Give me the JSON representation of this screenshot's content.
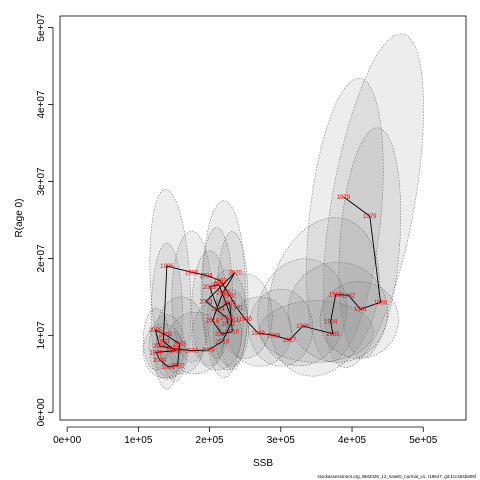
{
  "chart_data": {
    "type": "scatter",
    "title": "",
    "xlabel": "SSB",
    "ylabel": "R(age 0)",
    "xlim": [
      -10000,
      560000
    ],
    "ylim": [
      -1000000,
      51500000
    ],
    "x_ticks": [
      0,
      100000,
      200000,
      300000,
      400000,
      500000
    ],
    "x_tick_labels": [
      "0e+00",
      "1e+05",
      "2e+05",
      "3e+05",
      "4e+05",
      "5e+05"
    ],
    "y_ticks": [
      0,
      10000000,
      20000000,
      30000000,
      40000000,
      50000000
    ],
    "y_tick_labels": [
      "0e+00",
      "1e+07",
      "2e+07",
      "3e+07",
      "4e+07",
      "5e+07"
    ],
    "footnote": "stockassessment.org, BM2026_12_newID_normal_v1, r19647, git:1cc464b806f",
    "series": [
      {
        "type": "line-with-year-labels",
        "points": [
          {
            "label": "1978",
            "x": 388000,
            "y": 28000000
          },
          {
            "label": "1979",
            "x": 425000,
            "y": 25500000
          },
          {
            "label": "1980",
            "x": 440000,
            "y": 14300000
          },
          {
            "label": "1981",
            "x": 412000,
            "y": 13400000
          },
          {
            "label": "1982",
            "x": 395000,
            "y": 15200000
          },
          {
            "label": "1983",
            "x": 377000,
            "y": 15300000
          },
          {
            "label": "1984",
            "x": 370000,
            "y": 11800000
          },
          {
            "label": "1985",
            "x": 373000,
            "y": 10200000
          },
          {
            "label": "1986",
            "x": 331000,
            "y": 11200000
          },
          {
            "label": "1987",
            "x": 312000,
            "y": 9400000
          },
          {
            "label": "1988",
            "x": 290000,
            "y": 10000000
          },
          {
            "label": "1989",
            "x": 268000,
            "y": 10300000
          },
          {
            "label": "1990",
            "x": 250000,
            "y": 12100000
          },
          {
            "label": "1991",
            "x": 238000,
            "y": 13600000
          },
          {
            "label": "1992",
            "x": 228000,
            "y": 15200000
          },
          {
            "label": "1993",
            "x": 215000,
            "y": 17100000
          },
          {
            "label": "1994",
            "x": 195000,
            "y": 17800000
          },
          {
            "label": "1995",
            "x": 175000,
            "y": 18200000
          },
          {
            "label": "1996",
            "x": 140000,
            "y": 19000000
          },
          {
            "label": "1997",
            "x": 135000,
            "y": 9200000
          },
          {
            "label": "1998",
            "x": 152000,
            "y": 8000000
          },
          {
            "label": "1999",
            "x": 125000,
            "y": 7800000
          },
          {
            "label": "2000",
            "x": 130000,
            "y": 6800000
          },
          {
            "label": "2001",
            "x": 142000,
            "y": 5900000
          },
          {
            "label": "2002",
            "x": 155000,
            "y": 6100000
          },
          {
            "label": "2003",
            "x": 158000,
            "y": 8900000
          },
          {
            "label": "2004",
            "x": 138000,
            "y": 10100000
          },
          {
            "label": "2005",
            "x": 124000,
            "y": 10700000
          },
          {
            "label": "2006",
            "x": 130000,
            "y": 8600000
          },
          {
            "label": "2007",
            "x": 148000,
            "y": 8300000
          },
          {
            "label": "2008",
            "x": 175000,
            "y": 8000000
          },
          {
            "label": "2009",
            "x": 198000,
            "y": 8100000
          },
          {
            "label": "2010",
            "x": 218000,
            "y": 9200000
          },
          {
            "label": "2011",
            "x": 232000,
            "y": 12000000
          },
          {
            "label": "2012",
            "x": 213000,
            "y": 16600000
          },
          {
            "label": "2013",
            "x": 200000,
            "y": 16300000
          },
          {
            "label": "2014",
            "x": 212000,
            "y": 13400000
          },
          {
            "label": "2015",
            "x": 228000,
            "y": 14300000
          },
          {
            "label": "2016",
            "x": 232000,
            "y": 10500000
          },
          {
            "label": "2017",
            "x": 217000,
            "y": 10200000
          },
          {
            "label": "2018",
            "x": 204000,
            "y": 11900000
          },
          {
            "label": "2019",
            "x": 219000,
            "y": 15600000
          },
          {
            "label": "2020",
            "x": 236000,
            "y": 18200000
          },
          {
            "label": "2021",
            "x": 195000,
            "y": 14400000
          },
          {
            "label": "2022",
            "x": 224000,
            "y": 12300000
          },
          {
            "label": "2023",
            "x": 226000,
            "y": 11500000
          }
        ]
      }
    ],
    "confidence_ellipses": [
      {
        "cx": 430000,
        "cy": 27500000,
        "rx": 58000,
        "ry": 22000000,
        "angle": 10
      },
      {
        "cx": 390000,
        "cy": 25000000,
        "rx": 50000,
        "ry": 18500000,
        "angle": 6
      },
      {
        "cx": 425000,
        "cy": 22000000,
        "rx": 42000,
        "ry": 15000000,
        "angle": 4
      },
      {
        "cx": 360000,
        "cy": 15000000,
        "rx": 75000,
        "ry": 10500000,
        "angle": 15
      },
      {
        "cx": 330000,
        "cy": 13000000,
        "rx": 62000,
        "ry": 7000000,
        "angle": 10
      },
      {
        "cx": 380000,
        "cy": 13000000,
        "rx": 70000,
        "ry": 6500000,
        "angle": 5
      },
      {
        "cx": 300000,
        "cy": 11000000,
        "rx": 45000,
        "ry": 5000000,
        "angle": 0
      },
      {
        "cx": 270000,
        "cy": 10500000,
        "rx": 45000,
        "ry": 4500000,
        "angle": 0
      },
      {
        "cx": 250000,
        "cy": 12500000,
        "rx": 38000,
        "ry": 5500000,
        "angle": 0
      },
      {
        "cx": 145000,
        "cy": 16500000,
        "rx": 28000,
        "ry": 12500000,
        "angle": -3
      },
      {
        "cx": 140000,
        "cy": 12500000,
        "rx": 22000,
        "ry": 9500000,
        "angle": 0
      },
      {
        "cx": 175000,
        "cy": 15000000,
        "rx": 28000,
        "ry": 8500000,
        "angle": 0
      },
      {
        "cx": 220000,
        "cy": 16000000,
        "rx": 30000,
        "ry": 11500000,
        "angle": 0
      },
      {
        "cx": 232000,
        "cy": 14500000,
        "rx": 22000,
        "ry": 9000000,
        "angle": 0
      },
      {
        "cx": 210000,
        "cy": 15500000,
        "rx": 22000,
        "ry": 8500000,
        "angle": 0
      },
      {
        "cx": 200000,
        "cy": 13500000,
        "rx": 25000,
        "ry": 7500000,
        "angle": 0
      },
      {
        "cx": 225000,
        "cy": 12000000,
        "rx": 28000,
        "ry": 6500000,
        "angle": 0
      },
      {
        "cx": 140000,
        "cy": 8500000,
        "rx": 25000,
        "ry": 4200000,
        "angle": 0
      },
      {
        "cx": 135000,
        "cy": 8000000,
        "rx": 28000,
        "ry": 3500000,
        "angle": 0
      },
      {
        "cx": 145000,
        "cy": 7500000,
        "rx": 22000,
        "ry": 3000000,
        "angle": 0
      },
      {
        "cx": 180000,
        "cy": 9000000,
        "rx": 40000,
        "ry": 4000000,
        "angle": 0
      },
      {
        "cx": 210000,
        "cy": 10000000,
        "rx": 35000,
        "ry": 4500000,
        "angle": 0
      },
      {
        "cx": 160000,
        "cy": 10000000,
        "rx": 35000,
        "ry": 5000000,
        "angle": 0
      },
      {
        "cx": 125000,
        "cy": 9500000,
        "rx": 18000,
        "ry": 4000000,
        "angle": 0
      },
      {
        "cx": 230000,
        "cy": 11000000,
        "rx": 25000,
        "ry": 5000000,
        "angle": 0
      },
      {
        "cx": 350000,
        "cy": 10500000,
        "rx": 80000,
        "ry": 4000000,
        "angle": 0
      },
      {
        "cx": 410000,
        "cy": 12000000,
        "rx": 55000,
        "ry": 5000000,
        "angle": 0
      }
    ],
    "colors": {
      "points_text": "#ff0000",
      "line": "#000000",
      "ellipse_fill": "#808080",
      "ellipse_stroke": "#555555"
    },
    "grid": false,
    "legend": "none"
  }
}
